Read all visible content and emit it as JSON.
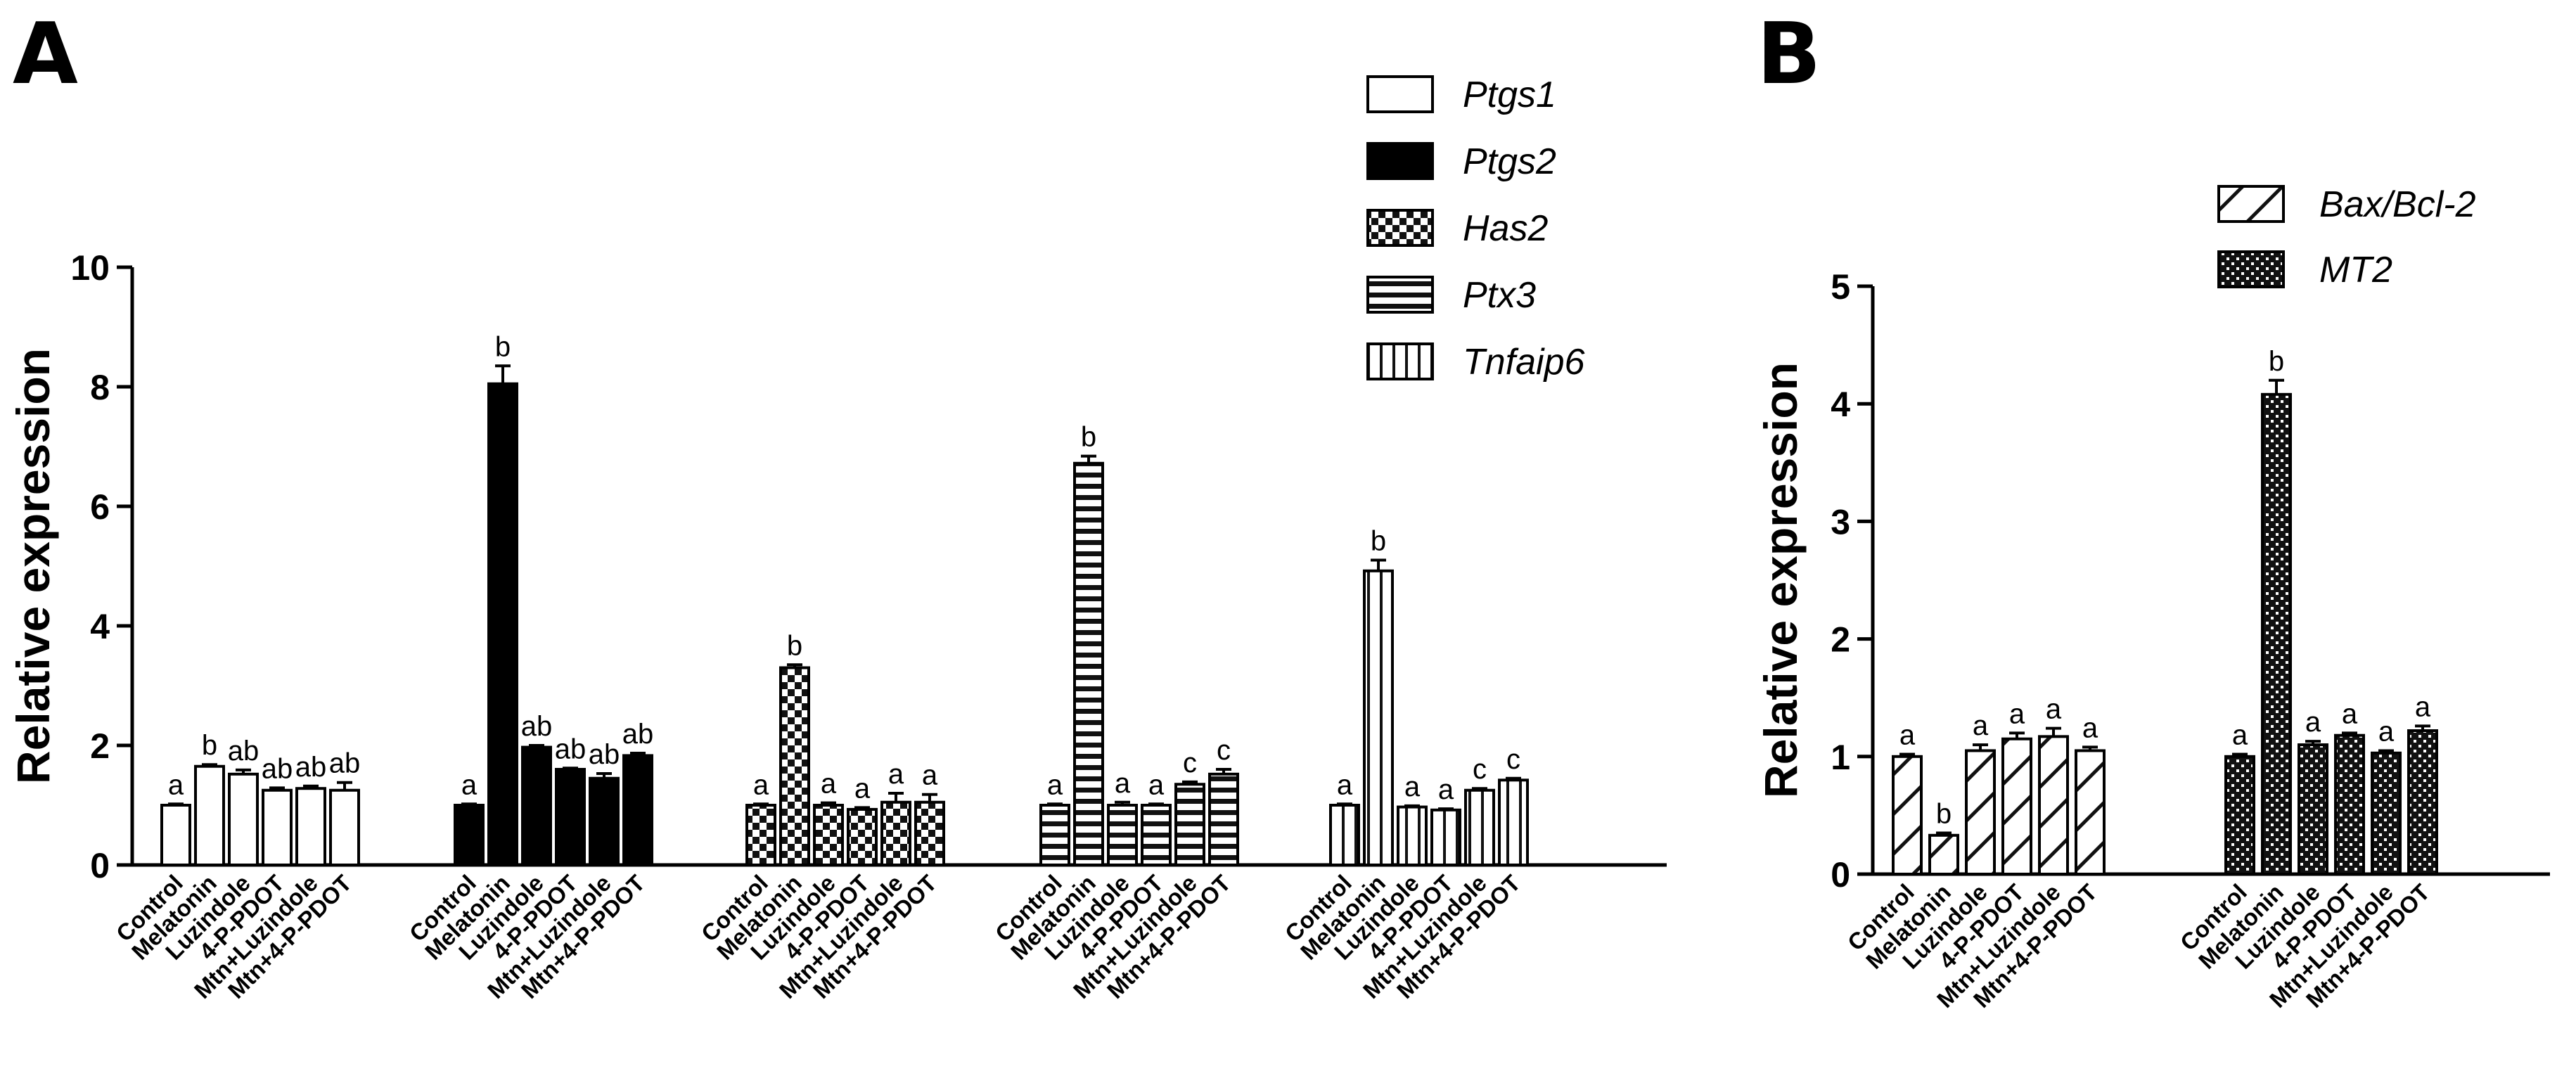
{
  "chart_data": [
    {
      "panel": "A",
      "type": "bar",
      "title": "",
      "xlabel": "",
      "ylabel": "Relative expression",
      "ylim": [
        0,
        10
      ],
      "yticks": [
        0,
        2,
        4,
        6,
        8,
        10
      ],
      "categories": [
        "Control",
        "Melatonin",
        "Luzindole",
        "4-P-PDOT",
        "Mtn+Luzindole",
        "Mtn+4-P-PDOT"
      ],
      "legend": [
        "Ptgs1",
        "Ptgs2",
        "Has2",
        "Ptx3",
        "Tnfaip6"
      ],
      "legend_position": "top-right",
      "series": [
        {
          "name": "Ptgs1",
          "pattern": "open",
          "values": [
            1.0,
            1.65,
            1.52,
            1.25,
            1.28,
            1.25
          ],
          "errors": [
            0.02,
            0.03,
            0.07,
            0.04,
            0.04,
            0.13
          ],
          "letters": [
            "a",
            "b",
            "ab",
            "ab",
            "ab",
            "ab"
          ]
        },
        {
          "name": "Ptgs2",
          "pattern": "solid",
          "values": [
            1.0,
            8.05,
            1.97,
            1.6,
            1.45,
            1.83
          ],
          "errors": [
            0.02,
            0.3,
            0.03,
            0.02,
            0.08,
            0.04
          ],
          "letters": [
            "a",
            "b",
            "ab",
            "ab",
            "ab",
            "ab"
          ]
        },
        {
          "name": "Has2",
          "pattern": "checker",
          "values": [
            1.0,
            3.3,
            1.0,
            0.93,
            1.05,
            1.05
          ],
          "errors": [
            0.02,
            0.05,
            0.04,
            0.03,
            0.15,
            0.13
          ],
          "letters": [
            "a",
            "b",
            "a",
            "a",
            "a",
            "a"
          ]
        },
        {
          "name": "Ptx3",
          "pattern": "horizontal",
          "values": [
            1.0,
            6.72,
            1.0,
            1.0,
            1.35,
            1.52
          ],
          "errors": [
            0.02,
            0.12,
            0.05,
            0.02,
            0.04,
            0.08
          ],
          "letters": [
            "a",
            "b",
            "a",
            "a",
            "c",
            "c"
          ]
        },
        {
          "name": "Tnfaip6",
          "pattern": "vertical",
          "values": [
            1.0,
            4.92,
            0.97,
            0.92,
            1.25,
            1.42
          ],
          "errors": [
            0.02,
            0.18,
            0.02,
            0.02,
            0.03,
            0.03
          ],
          "letters": [
            "a",
            "b",
            "a",
            "a",
            "c",
            "c"
          ]
        }
      ]
    },
    {
      "panel": "B",
      "type": "bar",
      "title": "",
      "xlabel": "",
      "ylabel": "Relative expression",
      "ylim": [
        0,
        5
      ],
      "yticks": [
        0,
        1,
        2,
        3,
        4,
        5
      ],
      "categories": [
        "Control",
        "Melatonin",
        "Luzindole",
        "4-P-PDOT",
        "Mtn+Luzindole",
        "Mtn+4-P-PDOT"
      ],
      "legend": [
        "Bax/Bcl-2",
        "MT2"
      ],
      "legend_position": "top-right",
      "series": [
        {
          "name": "Bax/Bcl-2",
          "pattern": "diagonal",
          "values": [
            1.0,
            0.33,
            1.05,
            1.15,
            1.17,
            1.05
          ],
          "errors": [
            0.02,
            0.02,
            0.05,
            0.05,
            0.07,
            0.03
          ],
          "letters": [
            "a",
            "b",
            "a",
            "a",
            "a",
            "a"
          ]
        },
        {
          "name": "MT2",
          "pattern": "dots",
          "values": [
            1.0,
            4.08,
            1.1,
            1.18,
            1.03,
            1.22
          ],
          "errors": [
            0.02,
            0.12,
            0.03,
            0.02,
            0.02,
            0.04
          ],
          "letters": [
            "a",
            "b",
            "a",
            "a",
            "a",
            "a"
          ]
        }
      ]
    }
  ],
  "figure": {
    "panel_labels": [
      "A",
      "B"
    ]
  }
}
